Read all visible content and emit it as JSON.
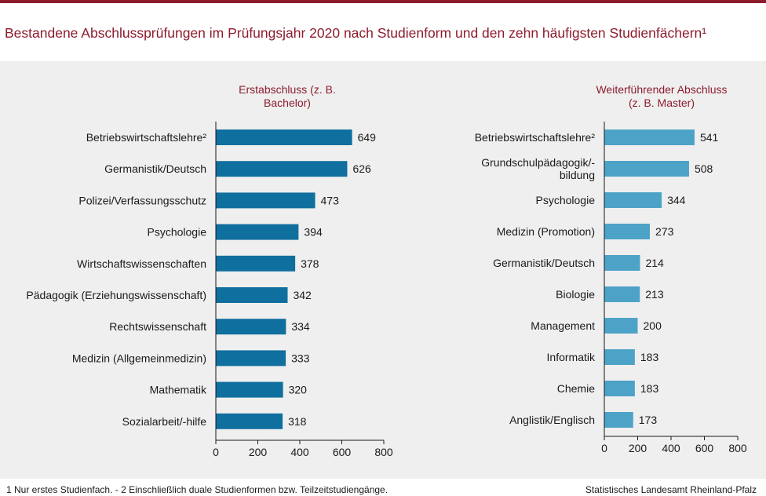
{
  "title": "Bestandene Abschlussprüfungen im Prüfungsjahr 2020 nach Studienform und den zehn häufigsten Studienfächern¹",
  "footnote": "1 Nur erstes Studienfach.  - 2 Einschließlich duale Studienformen  bzw. Teilzeitstudiengänge.",
  "source": "Statistisches Landesamt  Rheinland-Pfalz",
  "colors": {
    "accent": "#8c1c2c",
    "bar_left": "#0f6f9e",
    "bar_right": "#4da3c7",
    "panel": "#efefef"
  },
  "chart_data": [
    {
      "type": "bar",
      "orientation": "horizontal",
      "subtitle_lines": [
        "Erstabschluss  (z.  B.",
        "Bachelor)"
      ],
      "categories": [
        [
          "Betriebswirtschaftslehre²"
        ],
        [
          "Germanistik/Deutsch"
        ],
        [
          "Polizei/Verfassungsschutz"
        ],
        [
          "Psychologie"
        ],
        [
          "Wirtschaftswissenschaften"
        ],
        [
          "Pädagogik (Erziehungswissenschaft)"
        ],
        [
          "Rechtswissenschaft"
        ],
        [
          "Medizin (Allgemeinmedizin)"
        ],
        [
          "Mathematik"
        ],
        [
          "Sozialarbeit/-hilfe"
        ]
      ],
      "values": [
        649,
        626,
        473,
        394,
        378,
        342,
        334,
        333,
        320,
        318
      ],
      "xlim": [
        0,
        800
      ],
      "ticks": [
        0,
        200,
        400,
        600,
        800
      ],
      "color": "#0f6f9e"
    },
    {
      "type": "bar",
      "orientation": "horizontal",
      "subtitle_lines": [
        "Weiterführender  Abschluss",
        "(z.  B.  Master)"
      ],
      "categories": [
        [
          "Betriebswirtschaftslehre²"
        ],
        [
          "Grundschulpädagogik/-",
          "bildung"
        ],
        [
          "Psychologie"
        ],
        [
          "Medizin (Promotion)"
        ],
        [
          "Germanistik/Deutsch"
        ],
        [
          "Biologie"
        ],
        [
          "Management"
        ],
        [
          "Informatik"
        ],
        [
          "Chemie"
        ],
        [
          "Anglistik/Englisch"
        ]
      ],
      "values": [
        541,
        508,
        344,
        273,
        214,
        213,
        200,
        183,
        183,
        173
      ],
      "xlim": [
        0,
        800
      ],
      "ticks": [
        0,
        200,
        400,
        600,
        800
      ],
      "color": "#4da3c7"
    }
  ]
}
